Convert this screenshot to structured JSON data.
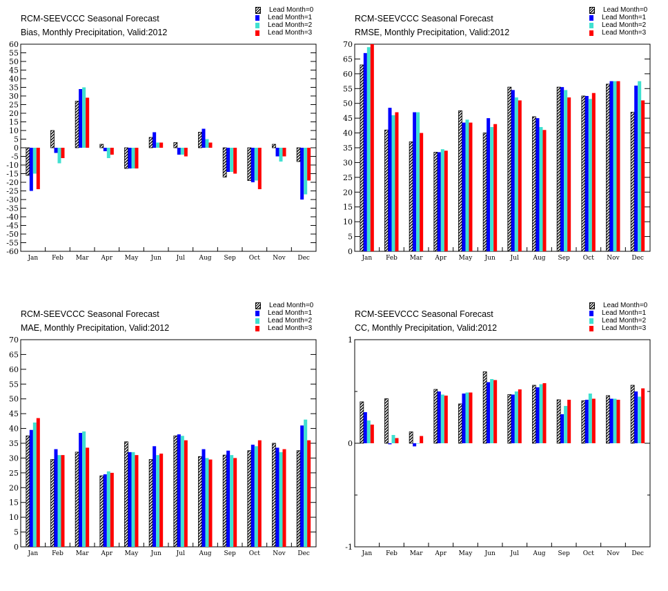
{
  "legend_labels": [
    "Lead Month=0",
    "Lead Month=1",
    "Lead Month=2",
    "Lead Month=3"
  ],
  "series_colors": [
    "hatched-black",
    "#0000ff",
    "#40e0d0",
    "#ff0000"
  ],
  "categories": [
    "Jan",
    "Feb",
    "Mar",
    "Apr",
    "May",
    "Jun",
    "Jul",
    "Aug",
    "Sep",
    "Oct",
    "Nov",
    "Dec"
  ],
  "panels": [
    {
      "title": "RCM-SEEVCCC Seasonal Forecast",
      "subtitle": "Bias, Monthly Precipitation, Valid:2012",
      "chart_data": {
        "type": "bar",
        "title": "RCM-SEEVCCC Seasonal Forecast",
        "subtitle": "Bias, Monthly Precipitation, Valid:2012",
        "categories": [
          "Jan",
          "Feb",
          "Mar",
          "Apr",
          "May",
          "Jun",
          "Jul",
          "Aug",
          "Sep",
          "Oct",
          "Nov",
          "Dec"
        ],
        "ylim": [
          -60,
          60
        ],
        "yticks": [
          -60,
          -55,
          -50,
          -45,
          -40,
          -35,
          -30,
          -25,
          -20,
          -15,
          -10,
          -5,
          0,
          5,
          10,
          15,
          20,
          25,
          30,
          35,
          40,
          45,
          50,
          55,
          60
        ],
        "ytick_labels": [
          "-60",
          "-55",
          "-50",
          "-45",
          "-40",
          "-35",
          "-30",
          "-25",
          "-20",
          "-15",
          "-10",
          "-5",
          "0",
          "5",
          "10",
          "15",
          "20",
          "25",
          "30",
          "35",
          "40",
          "45",
          "50",
          "55",
          "60"
        ],
        "series": [
          {
            "name": "Lead Month=0",
            "values": [
              -16,
              10,
              27,
              2,
              -12,
              6,
              3,
              9,
              -17,
              -19,
              2,
              -8
            ]
          },
          {
            "name": "Lead Month=1",
            "values": [
              -25,
              -3,
              34,
              -2,
              -12,
              9,
              -4,
              11,
              -14,
              -20,
              -5,
              -30
            ]
          },
          {
            "name": "Lead Month=2",
            "values": [
              -15,
              -9,
              35,
              -6,
              -12,
              3,
              -4,
              5,
              -14,
              -19,
              -8,
              -27
            ]
          },
          {
            "name": "Lead Month=3",
            "values": [
              -24,
              -6,
              29,
              -4,
              -12,
              3,
              -5,
              3,
              -15,
              -24,
              -5,
              -19
            ]
          }
        ]
      }
    },
    {
      "title": "RCM-SEEVCCC Seasonal Forecast",
      "subtitle": "RMSE, Monthly Precipitation, Valid:2012",
      "chart_data": {
        "type": "bar",
        "title": "RCM-SEEVCCC Seasonal Forecast",
        "subtitle": "RMSE, Monthly Precipitation, Valid:2012",
        "categories": [
          "Jan",
          "Feb",
          "Mar",
          "Apr",
          "May",
          "Jun",
          "Jul",
          "Aug",
          "Sep",
          "Oct",
          "Nov",
          "Dec"
        ],
        "ylim": [
          0,
          70
        ],
        "yticks": [
          0,
          5,
          10,
          15,
          20,
          25,
          30,
          35,
          40,
          45,
          50,
          55,
          60,
          65,
          70
        ],
        "ytick_labels": [
          "0",
          "5",
          "10",
          "15",
          "20",
          "25",
          "30",
          "35",
          "40",
          "45",
          "50",
          "55",
          "60",
          "65",
          "70"
        ],
        "series": [
          {
            "name": "Lead Month=0",
            "values": [
              63,
              41,
              37,
              33.5,
              47.5,
              40,
              55.5,
              45.5,
              55.5,
              52.5,
              56.5,
              47
            ]
          },
          {
            "name": "Lead Month=1",
            "values": [
              67,
              48.5,
              47,
              33.5,
              43.5,
              45,
              54.5,
              45,
              55.5,
              52.5,
              57.5,
              56
            ]
          },
          {
            "name": "Lead Month=2",
            "values": [
              69,
              46,
              47,
              34.5,
              44.5,
              42,
              52,
              42,
              54.5,
              51.5,
              57.5,
              57.5
            ]
          },
          {
            "name": "Lead Month=3",
            "values": [
              70,
              47,
              40,
              34,
              43.5,
              43,
              51,
              41,
              52,
              53.5,
              57.5,
              51
            ]
          }
        ]
      }
    },
    {
      "title": "RCM-SEEVCCC Seasonal Forecast",
      "subtitle": "MAE, Monthly Precipitation, Valid:2012",
      "chart_data": {
        "type": "bar",
        "title": "RCM-SEEVCCC Seasonal Forecast",
        "subtitle": "MAE, Monthly Precipitation, Valid:2012",
        "categories": [
          "Jan",
          "Feb",
          "Mar",
          "Apr",
          "May",
          "Jun",
          "Jul",
          "Aug",
          "Sep",
          "Oct",
          "Nov",
          "Dec"
        ],
        "ylim": [
          0,
          70
        ],
        "yticks": [
          0,
          5,
          10,
          15,
          20,
          25,
          30,
          35,
          40,
          45,
          50,
          55,
          60,
          65,
          70
        ],
        "ytick_labels": [
          "0",
          "5",
          "10",
          "15",
          "20",
          "25",
          "30",
          "35",
          "40",
          "45",
          "50",
          "55",
          "60",
          "65",
          "70"
        ],
        "series": [
          {
            "name": "Lead Month=0",
            "values": [
              37.5,
              29.5,
              32,
              24,
              35.5,
              29.5,
              37.5,
              30.5,
              31,
              32.5,
              35,
              32.5
            ]
          },
          {
            "name": "Lead Month=1",
            "values": [
              39.5,
              33,
              38.5,
              24.5,
              32,
              34,
              38,
              33,
              32.5,
              34.5,
              33.5,
              41
            ]
          },
          {
            "name": "Lead Month=2",
            "values": [
              42,
              31,
              39,
              25.5,
              32,
              31,
              37.5,
              30,
              31,
              34,
              32,
              43
            ]
          },
          {
            "name": "Lead Month=3",
            "values": [
              43.5,
              31,
              33.5,
              25,
              31,
              31.5,
              36,
              29.5,
              30,
              36,
              33,
              36
            ]
          }
        ]
      }
    },
    {
      "title": "RCM-SEEVCCC Seasonal Forecast",
      "subtitle": "CC, Monthly Precipitation, Valid:2012",
      "chart_data": {
        "type": "bar",
        "title": "RCM-SEEVCCC Seasonal Forecast",
        "subtitle": "CC, Monthly Precipitation, Valid:2012",
        "categories": [
          "Jan",
          "Feb",
          "Mar",
          "Apr",
          "May",
          "Jun",
          "Jul",
          "Aug",
          "Sep",
          "Oct",
          "Nov",
          "Dec"
        ],
        "ylim": [
          -1,
          1
        ],
        "yticks": [
          -1,
          0,
          1
        ],
        "ytick_labels": [
          "-1",
          "0",
          "1"
        ],
        "series": [
          {
            "name": "Lead Month=0",
            "values": [
              0.4,
              0.43,
              0.11,
              0.52,
              0.38,
              0.69,
              0.47,
              0.56,
              0.42,
              0.41,
              0.46,
              0.56
            ]
          },
          {
            "name": "Lead Month=1",
            "values": [
              0.3,
              -0.01,
              -0.03,
              0.5,
              0.48,
              0.59,
              0.47,
              0.54,
              0.28,
              0.42,
              0.43,
              0.5
            ]
          },
          {
            "name": "Lead Month=2",
            "values": [
              0.22,
              0.08,
              0.0,
              0.47,
              0.49,
              0.62,
              0.5,
              0.57,
              0.36,
              0.48,
              0.43,
              0.45
            ]
          },
          {
            "name": "Lead Month=3",
            "values": [
              0.18,
              0.05,
              0.07,
              0.46,
              0.49,
              0.61,
              0.52,
              0.58,
              0.42,
              0.43,
              0.42,
              0.53
            ]
          }
        ]
      }
    }
  ]
}
